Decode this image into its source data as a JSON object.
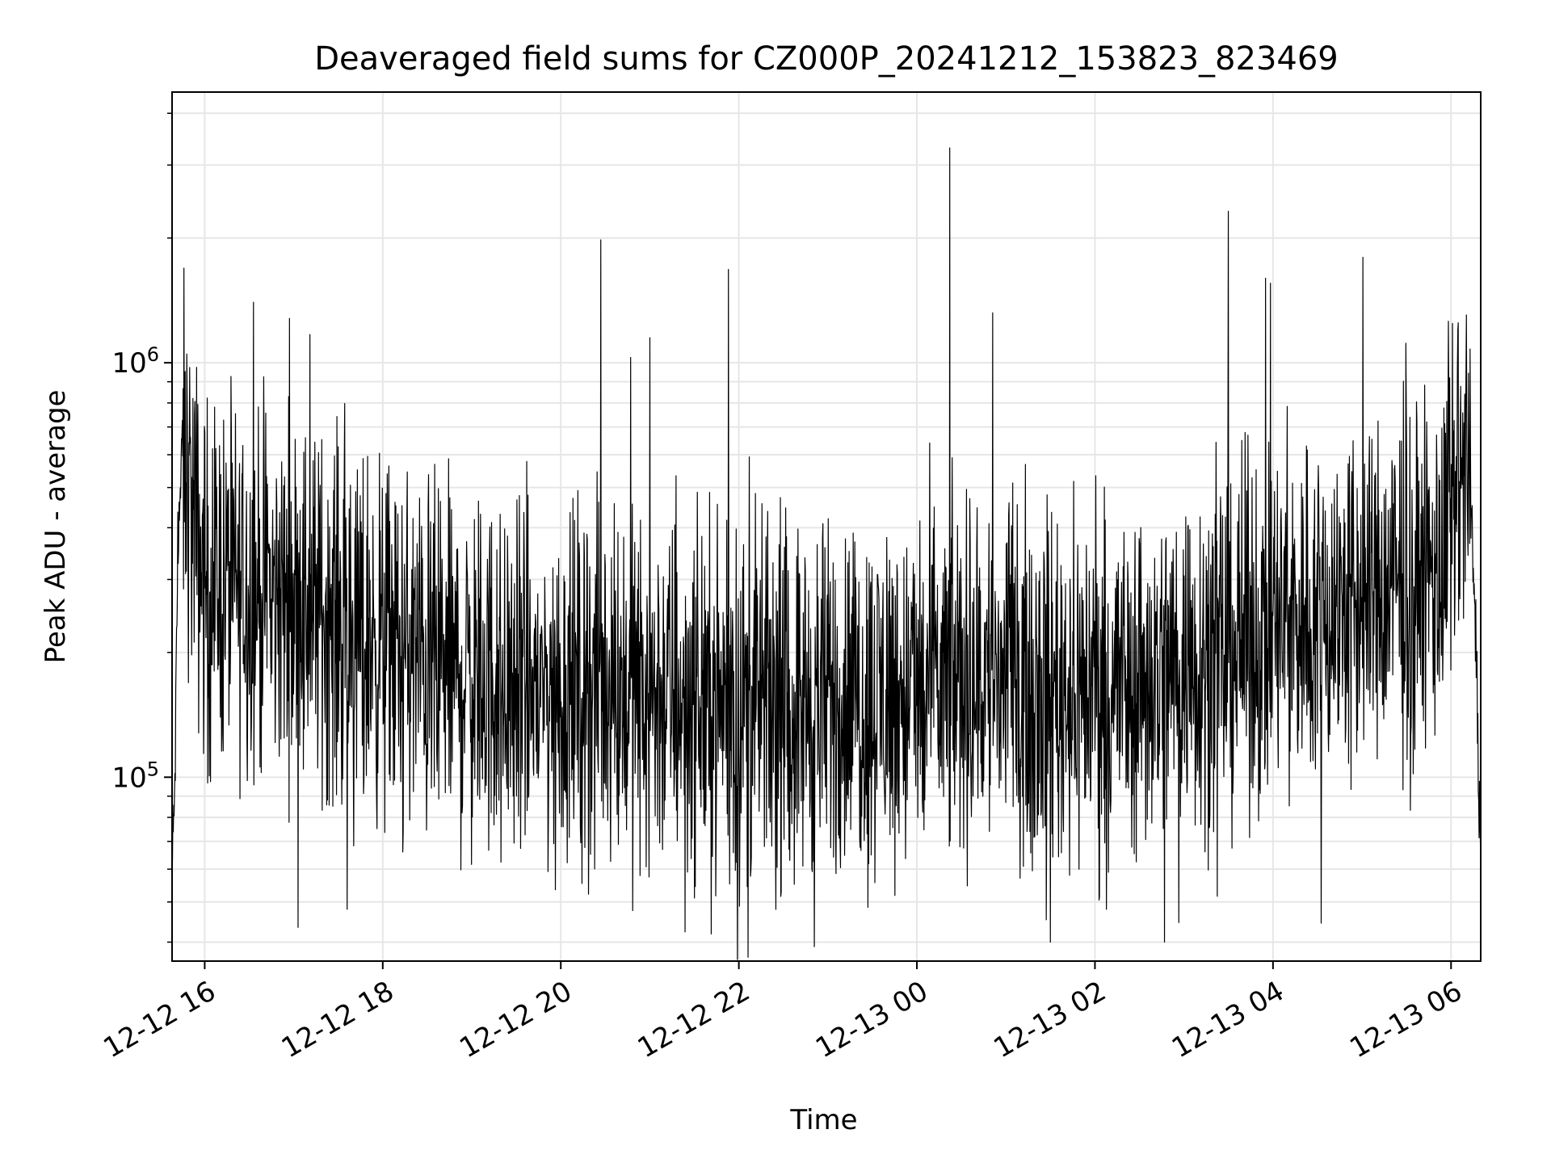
{
  "chart_data": {
    "type": "line",
    "title": "Deaveraged field sums for CZ000P_20241212_153823_823469",
    "xlabel": "Time",
    "ylabel": "Peak ADU - average",
    "xlim": [
      "2024-12-12 15:38",
      "2024-12-13 06:20"
    ],
    "ylim": [
      36000,
      4500000
    ],
    "yscale": "log",
    "grid": true,
    "line_color": "#000000",
    "grid_color": "#e6e6e6",
    "x_ticks": [
      {
        "value": "2024-12-12 16:00",
        "label": "12-12 16"
      },
      {
        "value": "2024-12-12 18:00",
        "label": "12-12 18"
      },
      {
        "value": "2024-12-12 20:00",
        "label": "12-12 20"
      },
      {
        "value": "2024-12-12 22:00",
        "label": "12-12 22"
      },
      {
        "value": "2024-12-13 00:00",
        "label": "12-13 00"
      },
      {
        "value": "2024-12-13 02:00",
        "label": "12-13 02"
      },
      {
        "value": "2024-12-13 04:00",
        "label": "12-13 04"
      },
      {
        "value": "2024-12-13 06:00",
        "label": "12-13 06"
      }
    ],
    "y_major_ticks": [
      {
        "value": 100000,
        "base": "10",
        "exp": "5"
      },
      {
        "value": 1000000,
        "base": "10",
        "exp": "6"
      }
    ],
    "y_minor_ticks": [
      40000,
      50000,
      60000,
      70000,
      80000,
      90000,
      200000,
      300000,
      400000,
      500000,
      600000,
      700000,
      800000,
      900000,
      2000000,
      3000000,
      4000000
    ],
    "series": [
      {
        "points": [
          [
            "2024-12-12 15:38",
            58000
          ],
          [
            "2024-12-12 15:40",
            100000
          ],
          [
            "2024-12-12 15:42",
            380000
          ],
          [
            "2024-12-12 15:45",
            600000
          ],
          [
            "2024-12-12 15:50",
            480000
          ],
          [
            "2024-12-12 15:55",
            360000
          ],
          [
            "2024-12-12 16:00",
            300000
          ],
          [
            "2024-12-12 16:30",
            280000
          ],
          [
            "2024-12-12 17:00",
            270000
          ],
          [
            "2024-12-12 17:30",
            240000
          ],
          [
            "2024-12-12 18:00",
            210000
          ],
          [
            "2024-12-12 18:30",
            190000
          ],
          [
            "2024-12-12 19:00",
            175000
          ],
          [
            "2024-12-12 19:30",
            165000
          ],
          [
            "2024-12-12 20:00",
            160000
          ],
          [
            "2024-12-12 20:30",
            165000
          ],
          [
            "2024-12-12 21:00",
            160000
          ],
          [
            "2024-12-12 21:30",
            155000
          ],
          [
            "2024-12-12 22:00",
            150000
          ],
          [
            "2024-12-12 22:30",
            150000
          ],
          [
            "2024-12-12 23:00",
            150000
          ],
          [
            "2024-12-12 23:30",
            155000
          ],
          [
            "2024-12-13 00:00",
            160000
          ],
          [
            "2024-12-13 00:30",
            170000
          ],
          [
            "2024-12-13 01:00",
            175000
          ],
          [
            "2024-12-13 01:30",
            170000
          ],
          [
            "2024-12-13 02:00",
            165000
          ],
          [
            "2024-12-13 02:30",
            175000
          ],
          [
            "2024-12-13 03:00",
            190000
          ],
          [
            "2024-12-13 03:30",
            205000
          ],
          [
            "2024-12-13 04:00",
            230000
          ],
          [
            "2024-12-13 04:30",
            250000
          ],
          [
            "2024-12-13 05:00",
            270000
          ],
          [
            "2024-12-13 05:30",
            290000
          ],
          [
            "2024-12-13 05:55",
            320000
          ],
          [
            "2024-12-13 06:05",
            500000
          ],
          [
            "2024-12-13 06:10",
            550000
          ],
          [
            "2024-12-13 06:14",
            400000
          ],
          [
            "2024-12-13 06:17",
            200000
          ],
          [
            "2024-12-13 06:20",
            60000
          ]
        ],
        "spikes": [
          [
            "2024-12-12 16:33",
            1400000
          ],
          [
            "2024-12-12 16:57",
            1280000
          ],
          [
            "2024-12-12 17:11",
            1170000
          ],
          [
            "2024-12-12 17:36",
            48000
          ],
          [
            "2024-12-12 20:27",
            1980000
          ],
          [
            "2024-12-12 20:47",
            1030000
          ],
          [
            "2024-12-12 21:00",
            1150000
          ],
          [
            "2024-12-12 21:53",
            1680000
          ],
          [
            "2024-12-12 21:59",
            36000
          ],
          [
            "2024-12-12 22:51",
            39000
          ],
          [
            "2024-12-13 00:22",
            3300000
          ],
          [
            "2024-12-13 00:51",
            1320000
          ],
          [
            "2024-12-13 01:30",
            40000
          ],
          [
            "2024-12-13 02:47",
            40000
          ],
          [
            "2024-12-13 03:30",
            2320000
          ],
          [
            "2024-12-13 03:55",
            1600000
          ]
        ]
      }
    ]
  }
}
